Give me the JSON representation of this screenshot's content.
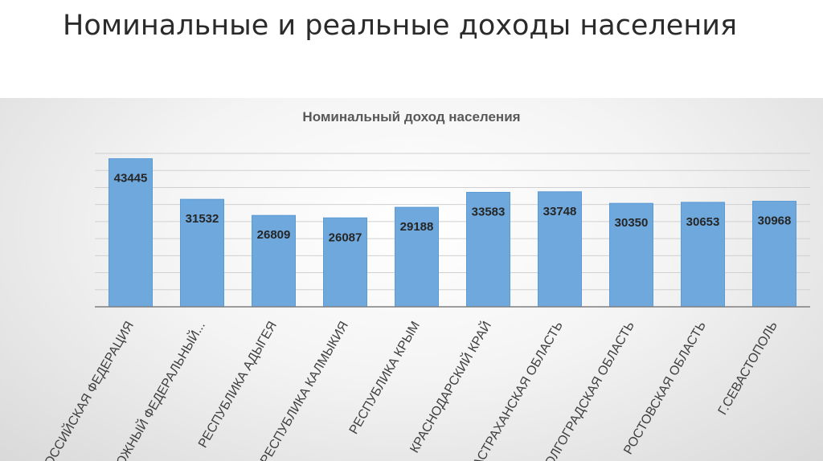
{
  "slide": {
    "title": "Номинальные и реальные доходы населения"
  },
  "chart_data": {
    "type": "bar",
    "title": "Номинальный доход населения",
    "categories": [
      "Российская Федерация",
      "Южный федеральный...",
      "Республика Адыгея",
      "Республика Калмыкия",
      "Республика Крым",
      "Краснодарский край",
      "Астраханская область",
      "Волгоградская область",
      "Ростовская область",
      "г.Севастополь"
    ],
    "values": [
      43445,
      31532,
      26809,
      26087,
      29188,
      33583,
      33748,
      30350,
      30653,
      30968
    ],
    "ylim": [
      0,
      45000
    ],
    "grid": true,
    "data_labels": true,
    "colors": {
      "bar": "#6fa8dc",
      "bar_border": "#5b9bd5",
      "label": "#262626"
    },
    "xlabel": "",
    "ylabel": ""
  }
}
